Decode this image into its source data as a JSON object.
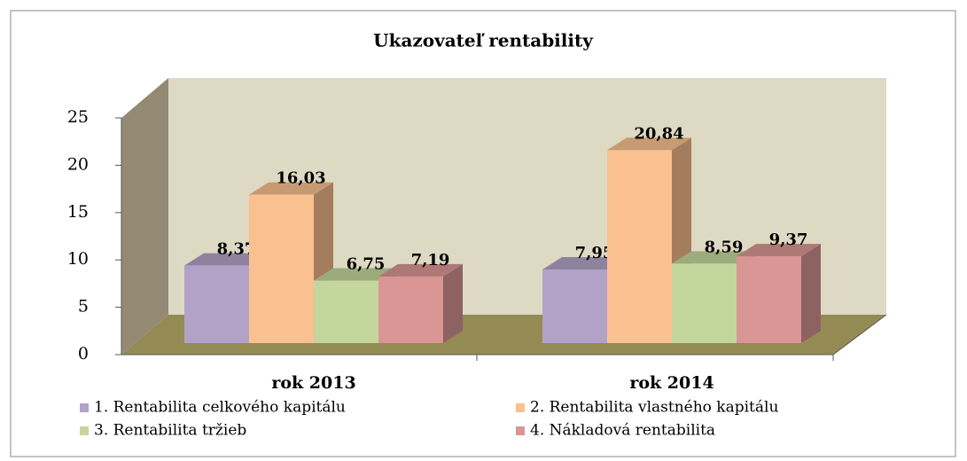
{
  "chart_data": {
    "type": "bar3d",
    "title": "Ukazovateľ rentability",
    "categories": [
      "rok 2013",
      "rok 2014"
    ],
    "series": [
      {
        "name": "1. Rentabilita celkového kapitálu",
        "color": "#b3a2c7",
        "values": [
          8.37,
          7.95
        ],
        "value_labels": [
          "8,37",
          "7,95"
        ]
      },
      {
        "name": "2. Rentabilita vlastného kapitálu",
        "color": "#fac090",
        "values": [
          16.03,
          20.84
        ],
        "value_labels": [
          "16,03",
          "20,84"
        ]
      },
      {
        "name": "3. Rentabilita tržieb",
        "color": "#c3d69b",
        "values": [
          6.75,
          8.59
        ],
        "value_labels": [
          "6,75",
          "8,59"
        ]
      },
      {
        "name": "4. Nákladová rentabilita",
        "color": "#d99694",
        "values": [
          7.19,
          9.37
        ],
        "value_labels": [
          "7,19",
          "9,37"
        ]
      }
    ],
    "ylim": [
      0,
      25
    ],
    "yticks": [
      0,
      5,
      10,
      15,
      20,
      25
    ],
    "legend": "bottom"
  }
}
